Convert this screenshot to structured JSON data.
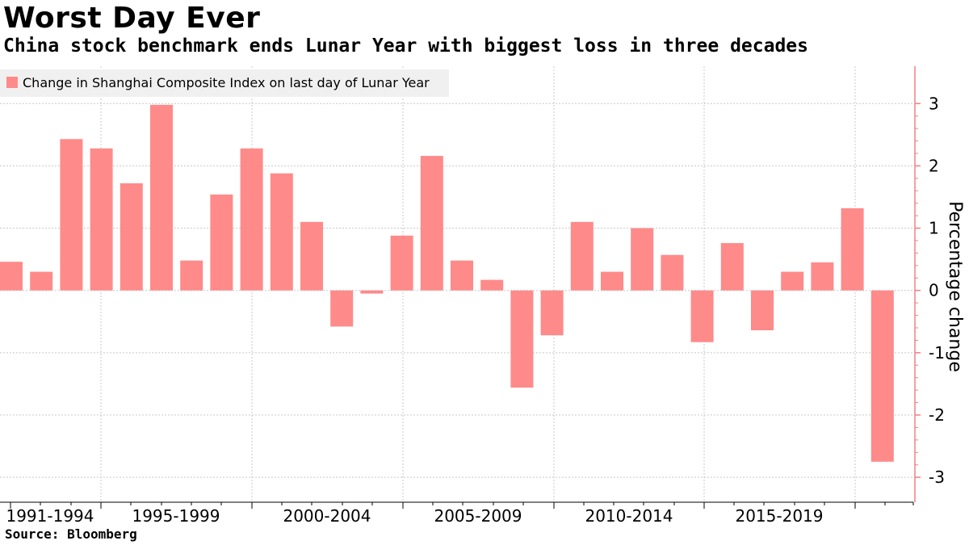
{
  "title": "Worst Day Ever",
  "subtitle": "China stock benchmark ends Lunar Year with biggest loss in three decades",
  "source": "Source: Bloomberg",
  "colors": {
    "bar": "#ff8a8a",
    "axis": "#f08080",
    "grid": "#c8c8c8",
    "legend_bg": "#f0f0f0"
  },
  "chart_data": {
    "type": "bar",
    "title": "Worst Day Ever",
    "series": [
      {
        "name": "Change in Shanghai Composite Index on last day of Lunar Year",
        "values": [
          0.46,
          0.3,
          2.43,
          2.28,
          1.72,
          2.98,
          0.48,
          1.54,
          2.28,
          1.88,
          1.1,
          -0.58,
          -0.05,
          0.88,
          2.16,
          0.48,
          0.17,
          -1.56,
          -0.72,
          1.1,
          0.3,
          1.0,
          0.57,
          -0.83,
          0.76,
          -0.64,
          0.3,
          0.45,
          1.32,
          -2.75
        ]
      }
    ],
    "x_ticks": [
      "1991-1994",
      "1995-1999",
      "2000-2004",
      "2005-2009",
      "2010-2014",
      "2015-2019"
    ],
    "xlabel": "",
    "ylabel": "Percentage change",
    "ylim": [
      -3.4,
      3.6
    ],
    "yticks": [
      -3,
      -2,
      -1,
      0,
      1,
      2,
      3
    ],
    "ytick_labels": [
      "-3",
      "-2",
      "-1",
      "0",
      "1",
      "2",
      "3"
    ],
    "grid": true,
    "legend_position": "top-left",
    "y_axis_side": "right"
  }
}
